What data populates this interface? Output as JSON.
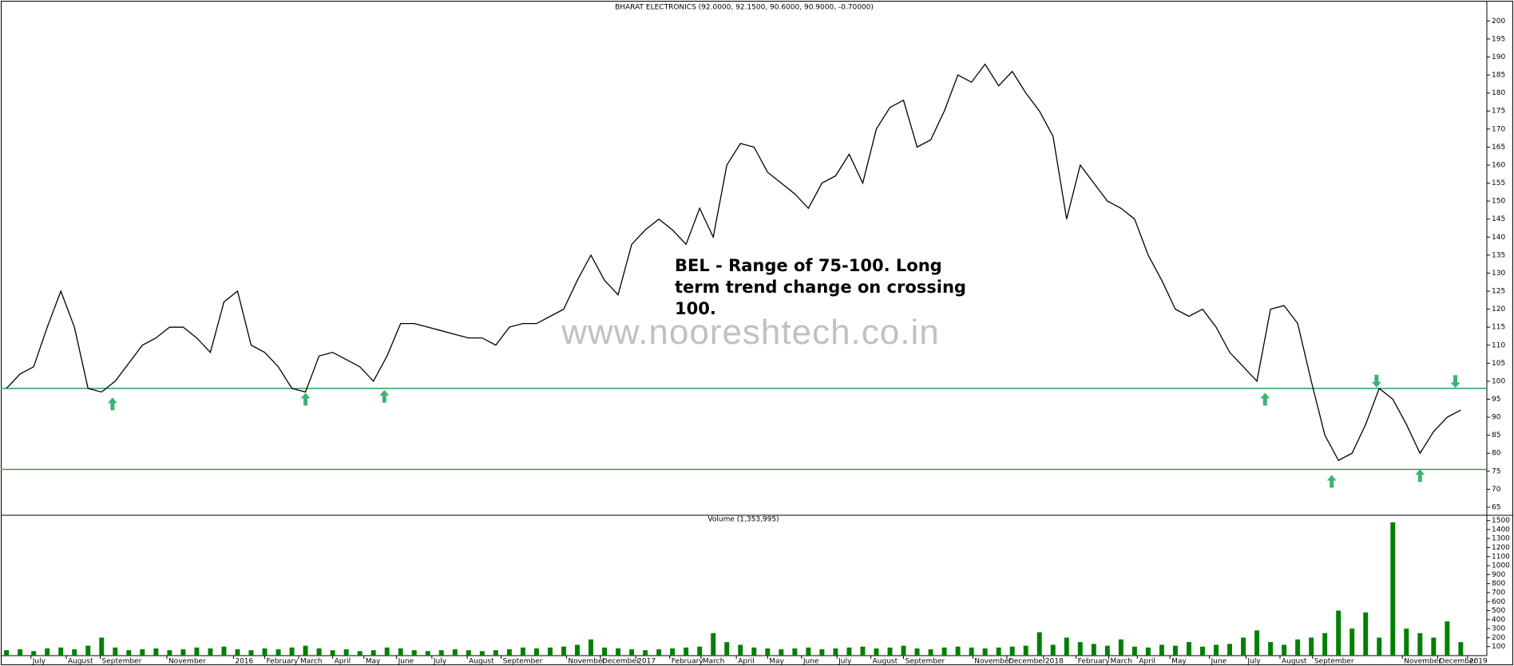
{
  "chart_data": [
    {
      "type": "line",
      "title": "BHARAT ELECTRONICS (92.0000, 92.1500, 90.6000, 90.9000, -0.70000)",
      "annotation": "BEL - Range of 75-100. Long term trend change on crossing 100.",
      "watermark": "www.nooreshtech.co.in",
      "xlim": [
        -0.3,
        108.8
      ],
      "ylim": [
        63,
        204.5
      ],
      "yticks": [
        65,
        70,
        75,
        80,
        85,
        90,
        95,
        100,
        105,
        110,
        115,
        120,
        125,
        130,
        135,
        140,
        145,
        150,
        155,
        160,
        165,
        170,
        175,
        180,
        185,
        190,
        195,
        200
      ],
      "series": [
        {
          "name": "BHARAT ELECTRONICS",
          "color": "#000000",
          "values": [
            98,
            102,
            104,
            115,
            125,
            115,
            98,
            97,
            100,
            105,
            110,
            112,
            115,
            115,
            112,
            108,
            122,
            125,
            110,
            108,
            104,
            98,
            97,
            107,
            108,
            106,
            104,
            100,
            107,
            116,
            116,
            115,
            114,
            113,
            112,
            112,
            110,
            115,
            116,
            116,
            118,
            120,
            128,
            135,
            128,
            124,
            138,
            142,
            145,
            142,
            138,
            148,
            140,
            160,
            166,
            165,
            158,
            155,
            152,
            148,
            155,
            157,
            163,
            155,
            170,
            176,
            178,
            165,
            167,
            175,
            185,
            183,
            188,
            182,
            186,
            180,
            175,
            168,
            145,
            160,
            155,
            150,
            148,
            145,
            135,
            128,
            120,
            118,
            120,
            115,
            108,
            104,
            100,
            120,
            121,
            116,
            100,
            85,
            78,
            80,
            88,
            98,
            95,
            88,
            80,
            86,
            90,
            92
          ]
        }
      ],
      "hlines": [
        {
          "value": 98,
          "color": "#2e9e5e"
        },
        {
          "value": 75.5,
          "color": "#2e9e5e"
        }
      ],
      "arrows": [
        {
          "x": 7.8,
          "y": 93.7,
          "direction": "up"
        },
        {
          "x": 22.0,
          "y": 95.0,
          "direction": "up"
        },
        {
          "x": 27.8,
          "y": 95.8,
          "direction": "up"
        },
        {
          "x": 92.6,
          "y": 95.0,
          "direction": "up"
        },
        {
          "x": 97.5,
          "y": 72.2,
          "direction": "up"
        },
        {
          "x": 104.0,
          "y": 73.8,
          "direction": "up"
        },
        {
          "x": 100.8,
          "y": 100.0,
          "direction": "down"
        },
        {
          "x": 106.6,
          "y": 99.9,
          "direction": "down"
        }
      ],
      "arrow_color": "#3cb371"
    },
    {
      "type": "bar",
      "title": "Volume (1,353,995)",
      "xlim": [
        -0.3,
        108.8
      ],
      "ylim": [
        0,
        1550
      ],
      "yticks": [
        100,
        200,
        300,
        400,
        500,
        600,
        700,
        800,
        900,
        1000,
        1100,
        1200,
        1300,
        1400,
        1500
      ],
      "xticks": [
        {
          "value": 1.8,
          "label": "July"
        },
        {
          "value": 4.4,
          "label": "August"
        },
        {
          "value": 6.9,
          "label": "September"
        },
        {
          "value": 11.8,
          "label": "November"
        },
        {
          "value": 16.7,
          "label": "2016"
        },
        {
          "value": 19.0,
          "label": "February"
        },
        {
          "value": 21.5,
          "label": "March"
        },
        {
          "value": 24.0,
          "label": "April"
        },
        {
          "value": 26.3,
          "label": "May"
        },
        {
          "value": 28.7,
          "label": "June"
        },
        {
          "value": 31.3,
          "label": "July"
        },
        {
          "value": 33.9,
          "label": "August"
        },
        {
          "value": 36.4,
          "label": "September"
        },
        {
          "value": 41.2,
          "label": "November"
        },
        {
          "value": 43.7,
          "label": "December"
        },
        {
          "value": 46.3,
          "label": "2017"
        },
        {
          "value": 48.8,
          "label": "February"
        },
        {
          "value": 51.1,
          "label": "March"
        },
        {
          "value": 53.7,
          "label": "April"
        },
        {
          "value": 56.0,
          "label": "May"
        },
        {
          "value": 58.5,
          "label": "June"
        },
        {
          "value": 61.1,
          "label": "July"
        },
        {
          "value": 63.6,
          "label": "August"
        },
        {
          "value": 66.0,
          "label": "September"
        },
        {
          "value": 71.1,
          "label": "November"
        },
        {
          "value": 73.6,
          "label": "December"
        },
        {
          "value": 76.3,
          "label": "2018"
        },
        {
          "value": 78.7,
          "label": "February"
        },
        {
          "value": 81.1,
          "label": "March"
        },
        {
          "value": 83.2,
          "label": "April"
        },
        {
          "value": 85.6,
          "label": "May"
        },
        {
          "value": 88.5,
          "label": "June"
        },
        {
          "value": 91.2,
          "label": "July"
        },
        {
          "value": 93.7,
          "label": "August"
        },
        {
          "value": 96.1,
          "label": "September"
        },
        {
          "value": 102.7,
          "label": "November"
        },
        {
          "value": 105.3,
          "label": "December"
        },
        {
          "value": 107.5,
          "label": "2019"
        }
      ],
      "series": [
        {
          "name": "Volume",
          "color": "#008000",
          "values": [
            60,
            70,
            50,
            80,
            90,
            70,
            110,
            200,
            90,
            60,
            70,
            80,
            60,
            70,
            90,
            80,
            100,
            70,
            60,
            80,
            70,
            90,
            110,
            80,
            60,
            70,
            50,
            60,
            90,
            80,
            60,
            50,
            60,
            70,
            60,
            50,
            60,
            70,
            90,
            80,
            90,
            100,
            120,
            180,
            90,
            80,
            70,
            60,
            70,
            80,
            90,
            100,
            250,
            150,
            120,
            90,
            80,
            70,
            80,
            90,
            70,
            80,
            90,
            100,
            80,
            90,
            110,
            80,
            70,
            90,
            100,
            90,
            80,
            90,
            100,
            110,
            260,
            120,
            200,
            150,
            130,
            110,
            180,
            100,
            90,
            120,
            110,
            150,
            100,
            120,
            130,
            200,
            280,
            150,
            120,
            180,
            200,
            250,
            500,
            300,
            480,
            200,
            1480,
            300,
            250,
            200,
            380,
            150
          ]
        }
      ]
    }
  ]
}
